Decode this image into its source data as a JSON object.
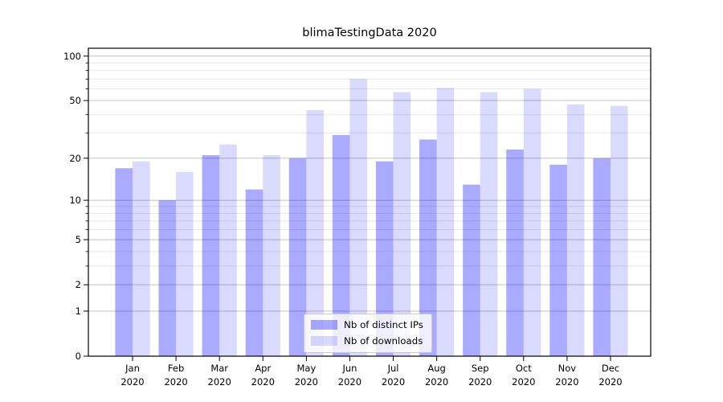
{
  "chart_data": {
    "type": "bar",
    "title": "blimaTestingData 2020",
    "categories": [
      "Jan",
      "Feb",
      "Mar",
      "Apr",
      "May",
      "Jun",
      "Jul",
      "Aug",
      "Sep",
      "Oct",
      "Nov",
      "Dec"
    ],
    "category_year": "2020",
    "series": [
      {
        "name": "Nb of distinct IPs",
        "color": "rgba(0,0,255,0.335)",
        "values": [
          17,
          10,
          21,
          12,
          20,
          29,
          19,
          27,
          13,
          23,
          18,
          20
        ]
      },
      {
        "name": "Nb of downloads",
        "color": "rgba(0,0,255,0.145)",
        "values": [
          19,
          16,
          25,
          21,
          43,
          70,
          57,
          61,
          57,
          60,
          47,
          46
        ]
      }
    ],
    "yscale": "log10(value+1)",
    "yticks": [
      0,
      1,
      2,
      5,
      10,
      20,
      50,
      100
    ],
    "yticks_minor": [
      3,
      4,
      6,
      7,
      8,
      9,
      30,
      40,
      60,
      70,
      80,
      90
    ],
    "ylim": [
      0,
      113
    ],
    "xlabel": "",
    "ylabel": "",
    "grid": "both",
    "legend_position": "lower center",
    "colors": {
      "major_grid": "#c3c3c3",
      "minor_grid": "#e8e8e8",
      "frame": "#000000",
      "text": "#000000"
    }
  }
}
